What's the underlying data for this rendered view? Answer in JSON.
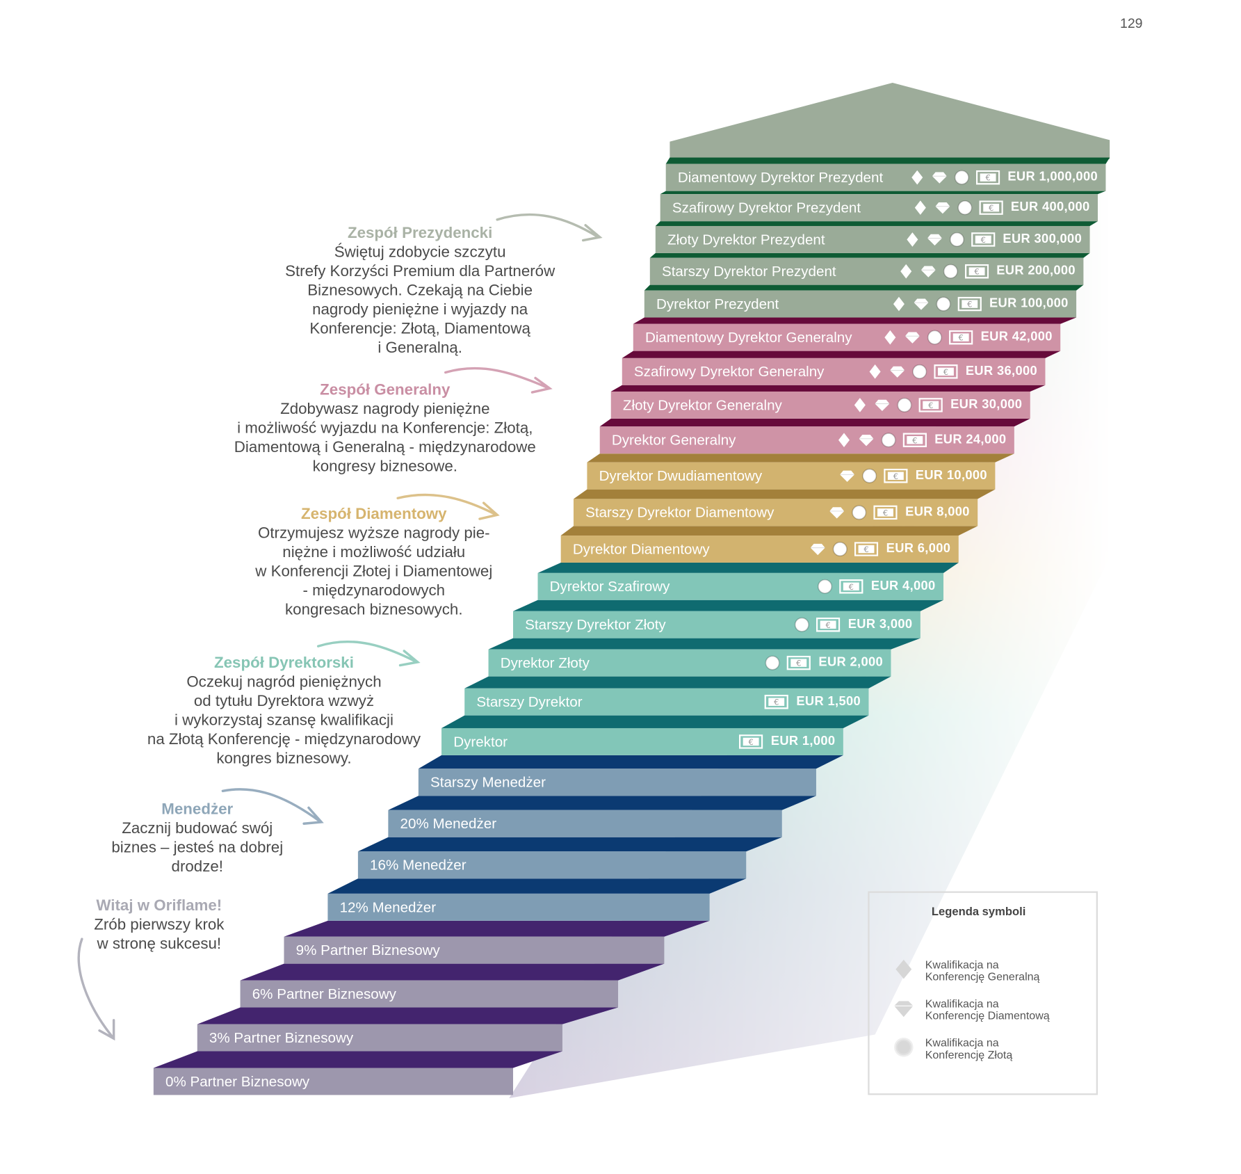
{
  "page_number": "129",
  "colors": {
    "prezydent": {
      "front": "#9aab98",
      "tread": "#0e5b34"
    },
    "generalny": {
      "front": "#cf93a6",
      "tread": "#660a3a"
    },
    "diamentowy": {
      "front": "#d2b36f",
      "tread": "#a3803a"
    },
    "dyrektorski": {
      "front": "#82c6b8",
      "tread": "#0f6b70"
    },
    "menedzer": {
      "front": "#7f9db4",
      "tread": "#0b3a72"
    },
    "partner": {
      "front": "#9d97ad",
      "tread": "#43246e"
    }
  },
  "steps": [
    {
      "label": "Diamentowy Dyrektor Prezydent",
      "amount": "EUR 1,000,000",
      "group": "prezydent",
      "icons": [
        "general-conference",
        "diamond-conference",
        "gold-conference",
        "euro-note"
      ]
    },
    {
      "label": "Szafirowy Dyrektor Prezydent",
      "amount": "EUR 400,000",
      "group": "prezydent",
      "icons": [
        "general-conference",
        "diamond-conference",
        "gold-conference",
        "euro-note"
      ]
    },
    {
      "label": "Złoty Dyrektor Prezydent",
      "amount": "EUR 300,000",
      "group": "prezydent",
      "icons": [
        "general-conference",
        "diamond-conference",
        "gold-conference",
        "euro-note"
      ]
    },
    {
      "label": "Starszy Dyrektor Prezydent",
      "amount": "EUR 200,000",
      "group": "prezydent",
      "icons": [
        "general-conference",
        "diamond-conference",
        "gold-conference",
        "euro-note"
      ]
    },
    {
      "label": "Dyrektor Prezydent",
      "amount": "EUR 100,000",
      "group": "prezydent",
      "icons": [
        "general-conference",
        "diamond-conference",
        "gold-conference",
        "euro-note"
      ]
    },
    {
      "label": "Diamentowy Dyrektor Generalny",
      "amount": "EUR 42,000",
      "group": "generalny",
      "icons": [
        "general-conference",
        "diamond-conference",
        "gold-conference",
        "euro-note"
      ]
    },
    {
      "label": "Szafirowy Dyrektor Generalny",
      "amount": "EUR 36,000",
      "group": "generalny",
      "icons": [
        "general-conference",
        "diamond-conference",
        "gold-conference",
        "euro-note"
      ]
    },
    {
      "label": "Złoty Dyrektor Generalny",
      "amount": "EUR 30,000",
      "group": "generalny",
      "icons": [
        "general-conference",
        "diamond-conference",
        "gold-conference",
        "euro-note"
      ]
    },
    {
      "label": "Dyrektor Generalny",
      "amount": "EUR 24,000",
      "group": "generalny",
      "icons": [
        "general-conference",
        "diamond-conference",
        "gold-conference",
        "euro-note"
      ]
    },
    {
      "label": "Dyrektor Dwudiamentowy",
      "amount": "EUR 10,000",
      "group": "diamentowy",
      "icons": [
        "diamond-conference",
        "gold-conference",
        "euro-note"
      ]
    },
    {
      "label": "Starszy Dyrektor Diamentowy",
      "amount": "EUR 8,000",
      "group": "diamentowy",
      "icons": [
        "diamond-conference",
        "gold-conference",
        "euro-note"
      ]
    },
    {
      "label": "Dyrektor Diamentowy",
      "amount": "EUR 6,000",
      "group": "diamentowy",
      "icons": [
        "diamond-conference",
        "gold-conference",
        "euro-note"
      ]
    },
    {
      "label": "Dyrektor Szafirowy",
      "amount": "EUR 4,000",
      "group": "dyrektorski",
      "icons": [
        "gold-conference",
        "euro-note"
      ]
    },
    {
      "label": "Starszy Dyrektor Złoty",
      "amount": "EUR 3,000",
      "group": "dyrektorski",
      "icons": [
        "gold-conference",
        "euro-note"
      ]
    },
    {
      "label": "Dyrektor Złoty",
      "amount": "EUR 2,000",
      "group": "dyrektorski",
      "icons": [
        "gold-conference",
        "euro-note"
      ]
    },
    {
      "label": "Starszy Dyrektor",
      "amount": "EUR 1,500",
      "group": "dyrektorski",
      "icons": [
        "euro-note"
      ]
    },
    {
      "label": "Dyrektor",
      "amount": "EUR 1,000",
      "group": "dyrektorski",
      "icons": [
        "euro-note"
      ]
    },
    {
      "label": "Starszy Menedżer",
      "amount": null,
      "group": "menedzer",
      "icons": []
    },
    {
      "label": "20% Menedżer",
      "amount": null,
      "group": "menedzer",
      "icons": []
    },
    {
      "label": "16% Menedżer",
      "amount": null,
      "group": "menedzer",
      "icons": []
    },
    {
      "label": "12% Menedżer",
      "amount": null,
      "group": "menedzer",
      "icons": []
    },
    {
      "label": "9% Partner Biznesowy",
      "amount": null,
      "group": "partner",
      "icons": []
    },
    {
      "label": "6% Partner Biznesowy",
      "amount": null,
      "group": "partner",
      "icons": []
    },
    {
      "label": "3% Partner Biznesowy",
      "amount": null,
      "group": "partner",
      "icons": []
    },
    {
      "label": "0% Partner Biznesowy",
      "amount": null,
      "group": "partner",
      "icons": []
    }
  ],
  "sections": [
    {
      "title": "Zespół Prezydencki",
      "color": "#a9b2a5",
      "lines": [
        "Świętuj zdobycie szczytu",
        "Strefy Korzyści Premium dla Partnerów",
        "Biznesowych. Czekają na Ciebie",
        "nagrody pieniężne i wyjazdy na",
        "Konferencje: Złotą, Diamentową",
        "i Generalną."
      ]
    },
    {
      "title": "Zespół Generalny",
      "color": "#c98ea3",
      "lines": [
        "Zdobywasz nagrody pieniężne",
        "i możliwość wyjazdu na Konferencje: Złotą,",
        "Diamentową i Generalną - międzynarodowe",
        "kongresy biznesowe."
      ]
    },
    {
      "title": "Zespół Diamentowy",
      "color": "#d6b46e",
      "lines": [
        "Otrzymujesz wyższe nagrody pie-",
        "niężne i możliwość udziału",
        "w Konferencji Złotej i Diamentowej",
        "- międzynarodowych",
        "kongresach biznesowych."
      ]
    },
    {
      "title": "Zespół Dyrektorski",
      "color": "#86c5b4",
      "lines": [
        "Oczekuj nagród pieniężnych",
        "od tytułu Dyrektora  wzwyż",
        "i wykorzystaj szansę kwalifikacji",
        "na Złotą Konferencję - międzynarodowy",
        "kongres biznesowy."
      ]
    },
    {
      "title": "Menedżer",
      "color": "#8ea6b8",
      "lines": [
        "Zacznij budować swój",
        "biznes – jesteś na dobrej",
        "drodze!"
      ]
    },
    {
      "title": "Witaj w Oriflame!",
      "color": "#a9a9b3",
      "lines": [
        "Zrób pierwszy krok",
        "w stronę sukcesu!"
      ]
    }
  ],
  "legend": {
    "title": "Legenda symboli",
    "items": [
      {
        "icon": "general-conference",
        "line1": "Kwalifikacja na",
        "line2": "Konferencję Generalną"
      },
      {
        "icon": "diamond-conference",
        "line1": "Kwalifikacja na",
        "line2": "Konferencję Diamentową"
      },
      {
        "icon": "gold-conference",
        "line1": "Kwalifikacja na",
        "line2": "Konferencję Złotą"
      }
    ]
  }
}
